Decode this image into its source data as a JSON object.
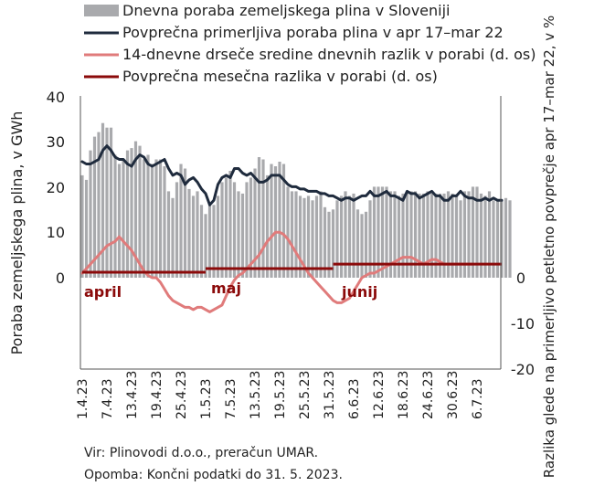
{
  "chart_data": {
    "type": "bar",
    "start_date": "2023-04-01",
    "x_tick_labels": [
      "1.4.23",
      "7.4.23",
      "13.4.23",
      "19.4.23",
      "25.4.23",
      "1.5.23",
      "7.5.23",
      "13.5.23",
      "19.5.23",
      "25.5.23",
      "31.5.23",
      "6.6.23",
      "12.6.23",
      "18.6.23",
      "24.6.23",
      "30.6.23",
      "6.7.23"
    ],
    "y_left": {
      "label": "Poraba zemeljskega plina, v GWh",
      "ticks": [
        "40",
        "30",
        "20",
        "10",
        "0"
      ],
      "range": [
        -20,
        40
      ]
    },
    "y_right": {
      "label": "Razlika glede na primerljivo petletno povprečje apr 17–mar 22, v %",
      "ticks": [
        "0",
        "-10",
        "-20"
      ],
      "range": [
        -20,
        40
      ]
    },
    "legend": [
      {
        "label": "Dnevna poraba zemeljskega plina v Sloveniji",
        "kind": "bar",
        "color": "#a9aaad"
      },
      {
        "label": "Povprečna primerljiva poraba plina v apr 17–mar 22",
        "kind": "line",
        "color": "#1f2b3d"
      },
      {
        "label": "14-dnevne drseče sredine dnevnih razlik v porabi (d. os)",
        "kind": "line",
        "color": "#e07b7b"
      },
      {
        "label": "Povprečna mesečna razlika v porabi (d. os)",
        "kind": "line",
        "color": "#8b0a0a"
      }
    ],
    "series": [
      {
        "name": "Dnevna poraba zemeljskega plina v Sloveniji",
        "type": "bar",
        "values": [
          22.5,
          21.5,
          28,
          31,
          32,
          34,
          33,
          33,
          27,
          25,
          26,
          28,
          28.5,
          30,
          29,
          26,
          27,
          25,
          26,
          26,
          24.5,
          19,
          17.5,
          21,
          25,
          24,
          19.5,
          18,
          19,
          16,
          14,
          16,
          16,
          18,
          21,
          22,
          23.5,
          21,
          19,
          18.5,
          21,
          22,
          24,
          26.5,
          26,
          22.5,
          25,
          24.5,
          25.5,
          25,
          20,
          19,
          19,
          18,
          17.5,
          18,
          17,
          18,
          19,
          15.5,
          14.5,
          15,
          17,
          18,
          19,
          18,
          18.5,
          15,
          14,
          14.5,
          17,
          20,
          20,
          20,
          20,
          19,
          19,
          18,
          18.5,
          19,
          19,
          19,
          18.5,
          18.5,
          19,
          18.5,
          18.5,
          18.5,
          18.5,
          19,
          18.5,
          18,
          17,
          19,
          19,
          20,
          20,
          18.5,
          18,
          19,
          17,
          17,
          17,
          17.5,
          17
        ]
      },
      {
        "name": "Povprečna primerljiva poraba plina v apr 17–mar 22",
        "type": "line",
        "points": [
          [
            0,
            25.5
          ],
          [
            1,
            25
          ],
          [
            2,
            25
          ],
          [
            3,
            25.5
          ],
          [
            4,
            26
          ],
          [
            5,
            28
          ],
          [
            6,
            29
          ],
          [
            7,
            28
          ],
          [
            8,
            26.5
          ],
          [
            9,
            26
          ],
          [
            10,
            26
          ],
          [
            11,
            25
          ],
          [
            12,
            24.5
          ],
          [
            13,
            26
          ],
          [
            14,
            27
          ],
          [
            15,
            26.5
          ],
          [
            16,
            25
          ],
          [
            17,
            24.5
          ],
          [
            18,
            25
          ],
          [
            19,
            25.5
          ],
          [
            20,
            26
          ],
          [
            21,
            24
          ],
          [
            22,
            22.5
          ],
          [
            23,
            23
          ],
          [
            24,
            22.5
          ],
          [
            25,
            20.5
          ],
          [
            26,
            21.5
          ],
          [
            27,
            22
          ],
          [
            28,
            21
          ],
          [
            29,
            19.5
          ],
          [
            30,
            18.5
          ],
          [
            31,
            16
          ],
          [
            32,
            17
          ],
          [
            33,
            20.5
          ],
          [
            34,
            22
          ],
          [
            35,
            22.5
          ],
          [
            36,
            22
          ],
          [
            37,
            24
          ],
          [
            38,
            24
          ],
          [
            39,
            23
          ],
          [
            40,
            22.5
          ],
          [
            41,
            23
          ],
          [
            42,
            22
          ],
          [
            43,
            21
          ],
          [
            44,
            21
          ],
          [
            45,
            21.5
          ],
          [
            46,
            22.5
          ],
          [
            47,
            22.5
          ],
          [
            48,
            22.5
          ],
          [
            49,
            21.5
          ],
          [
            50,
            20.5
          ],
          [
            51,
            20
          ],
          [
            52,
            20
          ],
          [
            53,
            19.5
          ],
          [
            54,
            19.5
          ],
          [
            55,
            19
          ],
          [
            56,
            19
          ],
          [
            57,
            19
          ],
          [
            58,
            18.5
          ],
          [
            59,
            18.5
          ],
          [
            60,
            18
          ],
          [
            61,
            18
          ],
          [
            62,
            17.5
          ],
          [
            63,
            17
          ],
          [
            64,
            17.5
          ],
          [
            65,
            17.5
          ],
          [
            66,
            17
          ],
          [
            67,
            17.5
          ],
          [
            68,
            18
          ],
          [
            69,
            18
          ],
          [
            70,
            19
          ],
          [
            71,
            18
          ],
          [
            72,
            18
          ],
          [
            73,
            18.5
          ],
          [
            74,
            19
          ],
          [
            75,
            18
          ],
          [
            76,
            18
          ],
          [
            77,
            17.5
          ],
          [
            78,
            17
          ],
          [
            79,
            19
          ],
          [
            80,
            18.5
          ],
          [
            81,
            18.5
          ],
          [
            82,
            17.5
          ],
          [
            83,
            18
          ],
          [
            84,
            18.5
          ],
          [
            85,
            19
          ],
          [
            86,
            18
          ],
          [
            87,
            18
          ],
          [
            88,
            17
          ],
          [
            89,
            17
          ],
          [
            90,
            18
          ],
          [
            91,
            18
          ],
          [
            92,
            19
          ],
          [
            93,
            18
          ],
          [
            94,
            17.5
          ],
          [
            95,
            17.5
          ],
          [
            96,
            17
          ],
          [
            97,
            17
          ],
          [
            98,
            17.5
          ],
          [
            99,
            17
          ],
          [
            100,
            17.5
          ],
          [
            101,
            17
          ],
          [
            102,
            17
          ]
        ]
      },
      {
        "name": "14-dnevne drseče sredine dnevnih razlik v porabi (d. os)",
        "type": "line",
        "points": [
          [
            0,
            1
          ],
          [
            2,
            3
          ],
          [
            4,
            5
          ],
          [
            6,
            7
          ],
          [
            8,
            8
          ],
          [
            9,
            9
          ],
          [
            10,
            8
          ],
          [
            11,
            7
          ],
          [
            12,
            6
          ],
          [
            13,
            4.5
          ],
          [
            14,
            3
          ],
          [
            15,
            1.5
          ],
          [
            16,
            0.5
          ],
          [
            17,
            0
          ],
          [
            18,
            0
          ],
          [
            19,
            -1
          ],
          [
            20,
            -2.5
          ],
          [
            21,
            -4
          ],
          [
            22,
            -5
          ],
          [
            23,
            -5.5
          ],
          [
            24,
            -6
          ],
          [
            25,
            -6.5
          ],
          [
            26,
            -6.5
          ],
          [
            27,
            -7
          ],
          [
            28,
            -6.5
          ],
          [
            29,
            -6.5
          ],
          [
            30,
            -7
          ],
          [
            31,
            -7.5
          ],
          [
            32,
            -7
          ],
          [
            33,
            -6.5
          ],
          [
            34,
            -6
          ],
          [
            35,
            -4
          ],
          [
            36,
            -2
          ],
          [
            37,
            -0.5
          ],
          [
            38,
            0.5
          ],
          [
            39,
            1
          ],
          [
            40,
            2
          ],
          [
            41,
            3
          ],
          [
            42,
            4
          ],
          [
            43,
            5
          ],
          [
            44,
            6.5
          ],
          [
            45,
            8
          ],
          [
            46,
            9
          ],
          [
            47,
            10
          ],
          [
            48,
            10
          ],
          [
            49,
            9.5
          ],
          [
            50,
            8.5
          ],
          [
            51,
            7
          ],
          [
            52,
            5.5
          ],
          [
            53,
            4
          ],
          [
            54,
            2.5
          ],
          [
            55,
            1
          ],
          [
            56,
            0
          ],
          [
            57,
            -1
          ],
          [
            58,
            -2
          ],
          [
            59,
            -3
          ],
          [
            60,
            -4
          ],
          [
            61,
            -5
          ],
          [
            62,
            -5.5
          ],
          [
            63,
            -5.5
          ],
          [
            64,
            -5
          ],
          [
            65,
            -4.5
          ],
          [
            66,
            -3
          ],
          [
            67,
            -1.5
          ],
          [
            68,
            0
          ],
          [
            69,
            0.5
          ],
          [
            70,
            1
          ],
          [
            71,
            1
          ],
          [
            72,
            1.5
          ],
          [
            73,
            2
          ],
          [
            74,
            2.5
          ],
          [
            75,
            3
          ],
          [
            76,
            3.5
          ],
          [
            77,
            4
          ],
          [
            78,
            4.5
          ],
          [
            79,
            4.5
          ],
          [
            80,
            4.5
          ],
          [
            81,
            4
          ],
          [
            82,
            3.5
          ],
          [
            83,
            3
          ],
          [
            84,
            3.5
          ],
          [
            85,
            4
          ],
          [
            86,
            4
          ],
          [
            87,
            3.5
          ],
          [
            88,
            3
          ],
          [
            89,
            3
          ],
          [
            90,
            3
          ],
          [
            91,
            3
          ],
          [
            92,
            3
          ],
          [
            93,
            3
          ],
          [
            94,
            3
          ],
          [
            95,
            3
          ]
        ]
      },
      {
        "name": "Povprečna mesečna razlika v porabi (d. os)",
        "type": "step",
        "segments": [
          {
            "from": 0,
            "to": 30,
            "value": 1.2
          },
          {
            "from": 30,
            "to": 61,
            "value": 2
          },
          {
            "from": 61,
            "to": 102,
            "value": 3
          }
        ]
      }
    ],
    "month_labels": [
      "april",
      "maj",
      "junij"
    ],
    "grid": false
  },
  "notes": {
    "source": "Vir: Plinovodi d.o.o., preračun UMAR.",
    "remark": "Opomba: Končni podatki do 31. 5. 2023."
  }
}
